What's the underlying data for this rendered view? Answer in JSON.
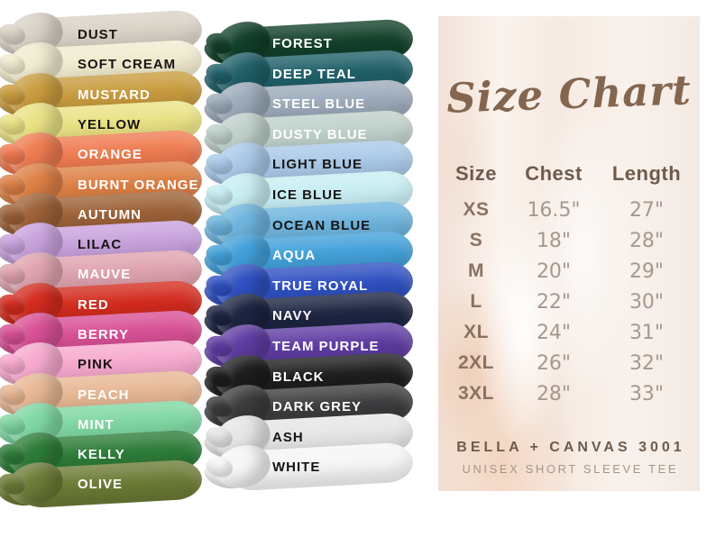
{
  "theme": {
    "title_color": "#84664f",
    "header_color": "#6f5b4c",
    "size_color": "#8a7262",
    "value_color": "#a6988d",
    "brand_color": "#6e5b4c",
    "product_color": "#a3968b",
    "panel_background": "#f6ece5",
    "page_background": "#ffffff"
  },
  "chart_data": {
    "type": "table",
    "title": "Size Chart",
    "columns": [
      "Size",
      "Chest",
      "Length"
    ],
    "rows": [
      [
        "XS",
        "16.5\"",
        "27\""
      ],
      [
        "S",
        "18\"",
        "28\""
      ],
      [
        "M",
        "20\"",
        "29\""
      ],
      [
        "L",
        "22\"",
        "30\""
      ],
      [
        "XL",
        "24\"",
        "31\""
      ],
      [
        "2XL",
        "26\"",
        "32\""
      ],
      [
        "3XL",
        "28\"",
        "33\""
      ]
    ],
    "notes": [
      "BELLA + CANVAS 3001",
      "UNISEX SHORT SLEEVE TEE"
    ],
    "color_swatches": {
      "left": [
        {
          "label": "DUST",
          "hex": "#d9d2c6",
          "text": "#171513"
        },
        {
          "label": "SOFT CREAM",
          "hex": "#f1ebcf",
          "text": "#171513"
        },
        {
          "label": "MUSTARD",
          "hex": "#c99c3e",
          "text": "#ffffff"
        },
        {
          "label": "YELLOW",
          "hex": "#eae284",
          "text": "#171513"
        },
        {
          "label": "ORANGE",
          "hex": "#ef7b50",
          "text": "#ffffff"
        },
        {
          "label": "BURNT ORANGE",
          "hex": "#dd8045",
          "text": "#ffffff"
        },
        {
          "label": "AUTUMN",
          "hex": "#9d6238",
          "text": "#ffffff"
        },
        {
          "label": "LILAC",
          "hex": "#c8a2dd",
          "text": "#171513"
        },
        {
          "label": "MAUVE",
          "hex": "#dfa3ae",
          "text": "#ffffff"
        },
        {
          "label": "RED",
          "hex": "#d32b1e",
          "text": "#ffffff"
        },
        {
          "label": "BERRY",
          "hex": "#d85095",
          "text": "#ffffff"
        },
        {
          "label": "PINK",
          "hex": "#f7a9ce",
          "text": "#171513"
        },
        {
          "label": "PEACH",
          "hex": "#e7b794",
          "text": "#ffffff"
        },
        {
          "label": "MINT",
          "hex": "#7fd7a3",
          "text": "#ffffff"
        },
        {
          "label": "KELLY",
          "hex": "#2d7c38",
          "text": "#ffffff"
        },
        {
          "label": "OLIVE",
          "hex": "#6d7b36",
          "text": "#ffffff"
        }
      ],
      "right": [
        {
          "label": "FOREST",
          "hex": "#12402a",
          "text": "#ffffff"
        },
        {
          "label": "DEEP TEAL",
          "hex": "#206069",
          "text": "#ffffff"
        },
        {
          "label": "STEEL BLUE",
          "hex": "#9caaba",
          "text": "#ffffff"
        },
        {
          "label": "DUSTY BLUE",
          "hex": "#bfd0ca",
          "text": "#ffffff"
        },
        {
          "label": "LIGHT BLUE",
          "hex": "#a9c9e9",
          "text": "#171513"
        },
        {
          "label": "ICE BLUE",
          "hex": "#c7eef3",
          "text": "#171513"
        },
        {
          "label": "OCEAN BLUE",
          "hex": "#6db4de",
          "text": "#171513"
        },
        {
          "label": "AQUA",
          "hex": "#42a0da",
          "text": "#ffffff"
        },
        {
          "label": "TRUE ROYAL",
          "hex": "#2f50c1",
          "text": "#ffffff"
        },
        {
          "label": "NAVY",
          "hex": "#1c2441",
          "text": "#ffffff"
        },
        {
          "label": "TEAM PURPLE",
          "hex": "#5f3ca2",
          "text": "#ffffff"
        },
        {
          "label": "BLACK",
          "hex": "#1d1d1f",
          "text": "#ffffff"
        },
        {
          "label": "DARK GREY",
          "hex": "#3c3c3e",
          "text": "#ffffff"
        },
        {
          "label": "ASH",
          "hex": "#e6e6e5",
          "text": "#171513"
        },
        {
          "label": "WHITE",
          "hex": "#f6f6f6",
          "text": "#171513"
        }
      ]
    }
  }
}
